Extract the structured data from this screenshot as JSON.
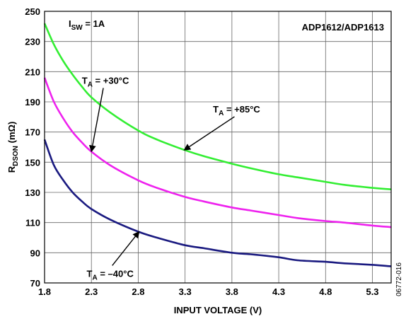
{
  "chart_data": {
    "type": "line",
    "title": "",
    "xlabel": "INPUT VOLTAGE (V)",
    "ylabel": {
      "main": "R",
      "sub": "DSON",
      "unit": " (mΩ)"
    },
    "xlim": [
      1.8,
      5.5
    ],
    "ylim": [
      70,
      250
    ],
    "xticks": [
      1.8,
      2.3,
      2.8,
      3.3,
      3.8,
      4.3,
      4.8,
      5.3
    ],
    "yticks": [
      70,
      90,
      110,
      130,
      150,
      170,
      190,
      210,
      230,
      250
    ],
    "grid": true,
    "conditions": {
      "main": "I",
      "sub": "SW",
      "rest": " = 1A"
    },
    "part_label": "ADP1612/ADP1613",
    "figure_id": "06772-016",
    "series": [
      {
        "name": "TA = +85°C",
        "label": {
          "main": "T",
          "sub": "A",
          "rest": " = +85°C"
        },
        "color": "#33ee33",
        "x": [
          1.8,
          1.9,
          2.0,
          2.1,
          2.2,
          2.3,
          2.5,
          2.8,
          3.0,
          3.3,
          3.5,
          3.8,
          4.0,
          4.3,
          4.5,
          4.8,
          5.0,
          5.3,
          5.5
        ],
        "y": [
          242,
          228,
          217,
          208,
          200,
          193,
          183,
          171,
          165,
          158,
          154,
          149,
          146,
          142,
          140,
          137,
          135,
          133,
          132
        ]
      },
      {
        "name": "TA = +30°C",
        "label": {
          "main": "T",
          "sub": "A",
          "rest": " = +30°C"
        },
        "color": "#ee22ee",
        "x": [
          1.8,
          1.9,
          2.0,
          2.1,
          2.2,
          2.3,
          2.5,
          2.8,
          3.0,
          3.3,
          3.5,
          3.8,
          4.0,
          4.3,
          4.5,
          4.8,
          5.0,
          5.3,
          5.5
        ],
        "y": [
          206,
          190,
          179,
          170,
          163,
          157,
          148,
          138,
          133,
          127,
          124,
          120,
          118,
          115,
          113,
          111,
          110,
          108,
          107
        ]
      },
      {
        "name": "TA = −40°C",
        "label": {
          "main": "T",
          "sub": "A",
          "rest": " = –40°C"
        },
        "color": "#1a1a80",
        "x": [
          1.8,
          1.9,
          2.0,
          2.1,
          2.2,
          2.3,
          2.5,
          2.8,
          3.0,
          3.3,
          3.5,
          3.8,
          4.0,
          4.3,
          4.5,
          4.8,
          5.0,
          5.3,
          5.5
        ],
        "y": [
          165,
          148,
          138,
          130,
          124,
          119,
          112,
          104,
          100,
          95,
          93,
          90,
          89,
          87,
          85,
          84,
          83,
          82,
          81
        ]
      }
    ],
    "annotations": [
      {
        "series": 0,
        "text_x": 3.85,
        "text_y": 183,
        "arrow_to_x": 3.29,
        "arrow_to_y": 158
      },
      {
        "series": 1,
        "text_x": 2.45,
        "text_y": 202,
        "arrow_to_x": 2.3,
        "arrow_to_y": 157
      },
      {
        "series": 2,
        "text_x": 2.5,
        "text_y": 74,
        "arrow_to_x": 2.81,
        "arrow_to_y": 104
      }
    ]
  }
}
